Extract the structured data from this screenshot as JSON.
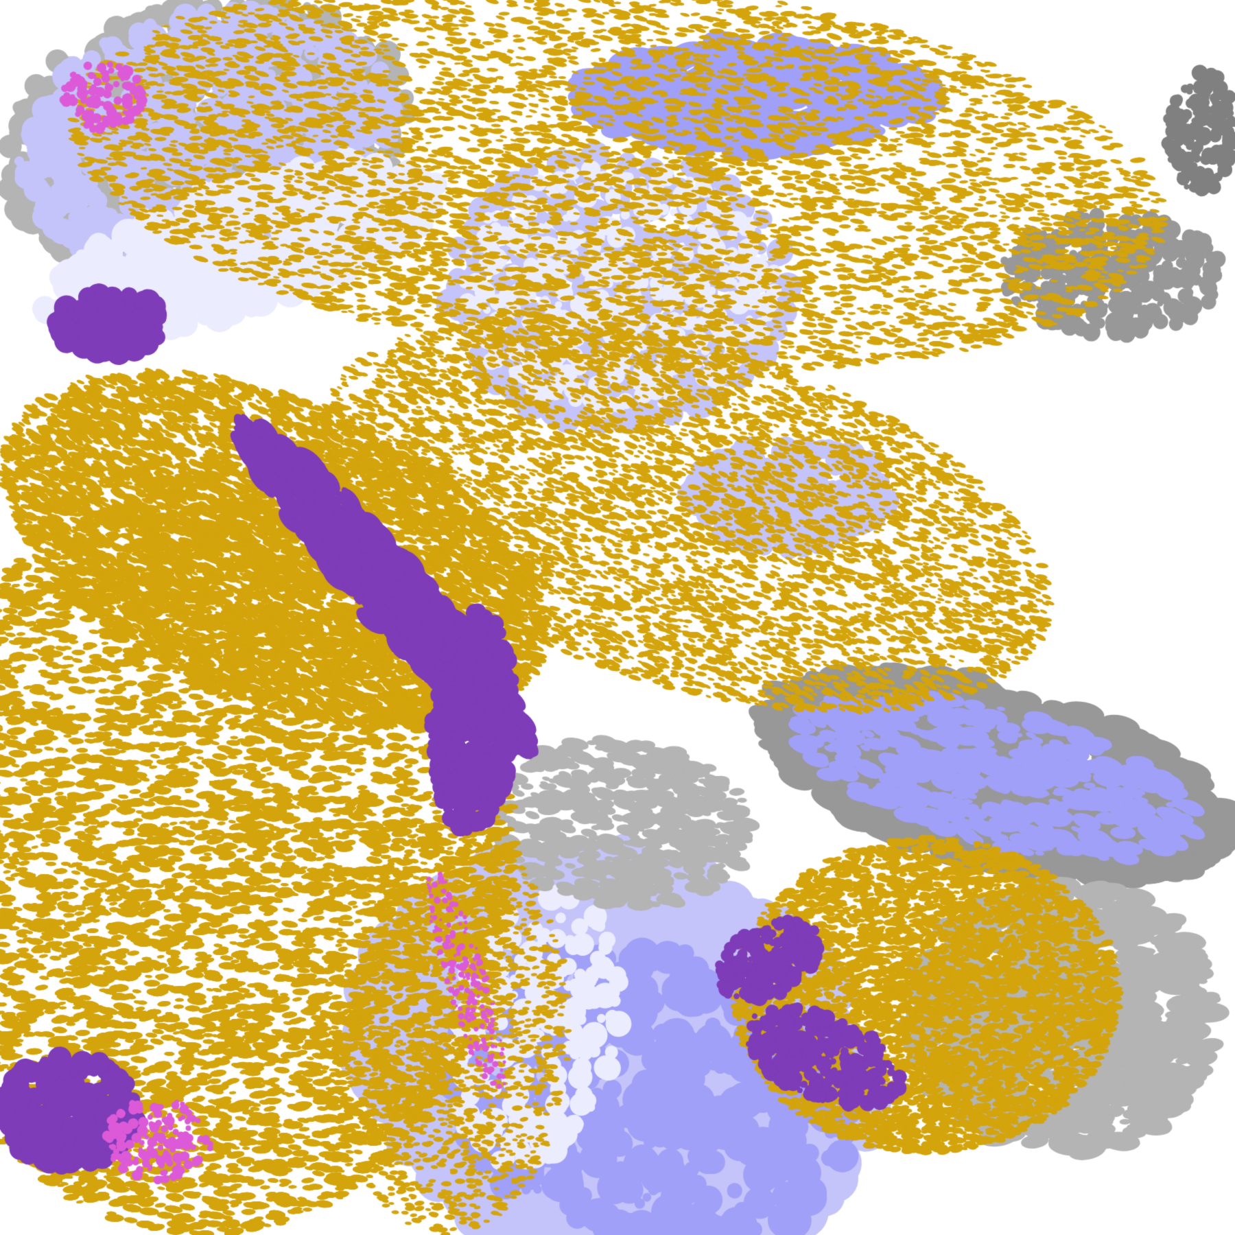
{
  "map": {
    "type": "satellite-classification-image",
    "legend_present": false,
    "class_colors": {
      "background": "#ffffff",
      "gold": "#d4a40c",
      "purple": "#7e3cb8",
      "magenta": "#dc5ad8",
      "pale-lavender": "#ececff",
      "lavender": "#c4c4fa",
      "periwinkle": "#a0a0f8",
      "light-gray": "#b4b4b4",
      "gray": "#989898",
      "dark-gray": "#808080"
    }
  }
}
